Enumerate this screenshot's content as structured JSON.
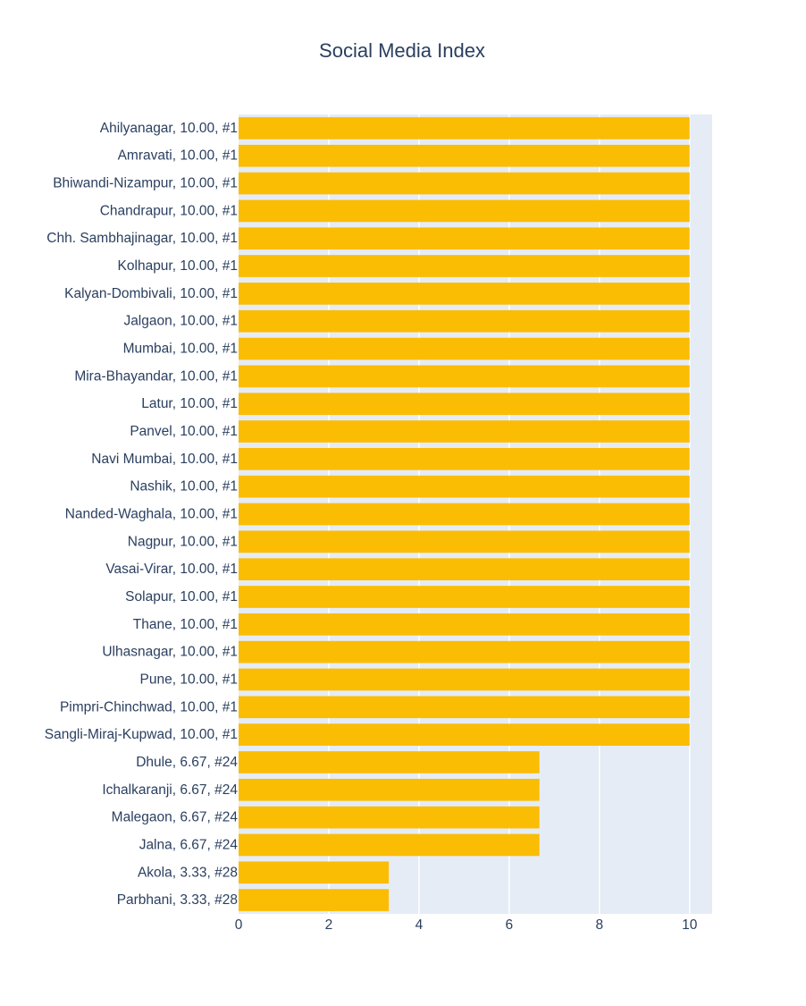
{
  "chart_data": {
    "type": "bar",
    "orientation": "horizontal",
    "title": "Social Media Index",
    "xlabel": "",
    "ylabel": "",
    "xlim": [
      0,
      10.5
    ],
    "x_ticks": [
      0,
      2,
      4,
      6,
      8,
      10
    ],
    "grid": true,
    "bar_color": "#FBBC04",
    "plot_bg_color": "#E5ECF6",
    "text_color": "#2a3f5f",
    "categories": [
      "Ahilyanagar, 10.00, #1",
      "Amravati, 10.00, #1",
      "Bhiwandi-Nizampur, 10.00, #1",
      "Chandrapur, 10.00, #1",
      "Chh. Sambhajinagar, 10.00, #1",
      "Kolhapur, 10.00, #1",
      "Kalyan-Dombivali, 10.00, #1",
      "Jalgaon, 10.00, #1",
      "Mumbai, 10.00, #1",
      "Mira-Bhayandar, 10.00, #1",
      "Latur, 10.00, #1",
      "Panvel, 10.00, #1",
      "Navi Mumbai, 10.00, #1",
      "Nashik, 10.00, #1",
      "Nanded-Waghala, 10.00, #1",
      "Nagpur, 10.00, #1",
      "Vasai-Virar, 10.00, #1",
      "Solapur, 10.00, #1",
      "Thane, 10.00, #1",
      "Ulhasnagar, 10.00, #1",
      "Pune, 10.00, #1",
      "Pimpri-Chinchwad, 10.00, #1",
      "Sangli-Miraj-Kupwad, 10.00, #1",
      "Dhule, 6.67, #24",
      "Ichalkaranji, 6.67, #24",
      "Malegaon, 6.67, #24",
      "Jalna, 6.67, #24",
      "Akola, 3.33, #28",
      "Parbhani, 3.33, #28"
    ],
    "values": [
      10,
      10,
      10,
      10,
      10,
      10,
      10,
      10,
      10,
      10,
      10,
      10,
      10,
      10,
      10,
      10,
      10,
      10,
      10,
      10,
      10,
      10,
      10,
      6.67,
      6.67,
      6.67,
      6.67,
      3.33,
      3.33
    ]
  }
}
